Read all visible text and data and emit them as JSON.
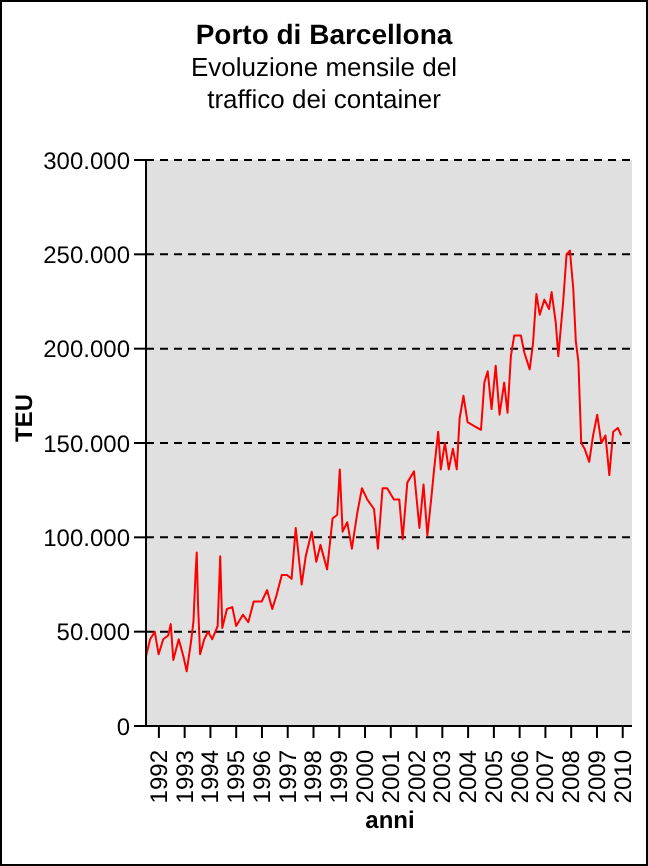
{
  "chart_data": {
    "type": "line",
    "title": "Porto di Barcellona",
    "subtitle": "Evoluzione mensile del traffico dei container",
    "xlabel": "anni",
    "ylabel": "TEU",
    "x": [
      1992.0,
      1992.16,
      1992.34,
      1992.49,
      1992.67,
      1992.86,
      1992.96,
      1993.06,
      1993.27,
      1993.45,
      1993.58,
      1993.74,
      1993.84,
      1993.92,
      1993.97,
      1994.02,
      1994.1,
      1994.26,
      1994.41,
      1994.57,
      1994.78,
      1994.88,
      1994.96,
      1995.14,
      1995.35,
      1995.5,
      1995.76,
      1995.97,
      1996.18,
      1996.49,
      1996.7,
      1996.9,
      1997.06,
      1997.27,
      1997.47,
      1997.65,
      1997.81,
      1998.04,
      1998.2,
      1998.43,
      1998.61,
      1998.77,
      1999.03,
      1999.24,
      1999.42,
      1999.52,
      1999.63,
      1999.81,
      1999.99,
      2000.2,
      2000.38,
      2000.59,
      2000.85,
      2001.0,
      2001.18,
      2001.36,
      2001.62,
      2001.83,
      2001.96,
      2002.14,
      2002.4,
      2002.61,
      2002.77,
      2002.92,
      2003.08,
      2003.18,
      2003.34,
      2003.44,
      2003.6,
      2003.75,
      2003.91,
      2004.06,
      2004.17,
      2004.32,
      2004.48,
      2004.74,
      2005.0,
      2005.13,
      2005.26,
      2005.41,
      2005.57,
      2005.72,
      2005.9,
      2006.03,
      2006.16,
      2006.29,
      2006.55,
      2006.68,
      2006.89,
      2007.02,
      2007.15,
      2007.28,
      2007.46,
      2007.64,
      2007.74,
      2007.9,
      2008.0,
      2008.19,
      2008.32,
      2008.45,
      2008.58,
      2008.68,
      2008.78,
      2008.89,
      2009.02,
      2009.2,
      2009.35,
      2009.51,
      2009.67,
      2009.83,
      2009.98,
      2010.13,
      2010.31,
      2010.44
    ],
    "series": [
      {
        "color": "#ff0000",
        "values": [
          37000,
          46000,
          50000,
          38000,
          46000,
          48000,
          54000,
          35000,
          46000,
          37000,
          29000,
          44000,
          55000,
          80000,
          92000,
          64000,
          38000,
          46000,
          50000,
          46000,
          53000,
          90000,
          52000,
          62000,
          63000,
          53000,
          59000,
          55000,
          66000,
          66000,
          72000,
          62000,
          69000,
          80000,
          80000,
          78000,
          105000,
          75000,
          90000,
          103000,
          87000,
          96000,
          83000,
          110000,
          112000,
          136000,
          103000,
          108000,
          94000,
          113000,
          126000,
          120000,
          115000,
          94000,
          126000,
          126000,
          120000,
          120000,
          99000,
          129000,
          135000,
          105000,
          128000,
          101000,
          122000,
          136000,
          156000,
          136000,
          150000,
          136000,
          147000,
          136000,
          163000,
          175000,
          161000,
          159000,
          157000,
          182000,
          188000,
          168000,
          191000,
          165000,
          182000,
          166000,
          196000,
          207000,
          207000,
          198000,
          189000,
          203000,
          229000,
          218000,
          226000,
          221000,
          230000,
          214000,
          196000,
          225000,
          250000,
          252000,
          232000,
          204000,
          193000,
          150000,
          147000,
          140000,
          154000,
          165000,
          150000,
          154000,
          133000,
          156000,
          158000,
          154000
        ]
      }
    ],
    "xlim": [
      1992,
      2010.86
    ],
    "xticks": [
      {
        "value": 1992.5,
        "label": "1992"
      },
      {
        "value": 1993.5,
        "label": "1993"
      },
      {
        "value": 1994.5,
        "label": "1994"
      },
      {
        "value": 1995.5,
        "label": "1995"
      },
      {
        "value": 1996.5,
        "label": "1996"
      },
      {
        "value": 1997.5,
        "label": "1997"
      },
      {
        "value": 1998.5,
        "label": "1998"
      },
      {
        "value": 1999.5,
        "label": "1999"
      },
      {
        "value": 2000.5,
        "label": "2000"
      },
      {
        "value": 2001.5,
        "label": "2001"
      },
      {
        "value": 2002.5,
        "label": "2002"
      },
      {
        "value": 2003.5,
        "label": "2003"
      },
      {
        "value": 2004.5,
        "label": "2004"
      },
      {
        "value": 2005.5,
        "label": "2005"
      },
      {
        "value": 2006.5,
        "label": "2006"
      },
      {
        "value": 2007.5,
        "label": "2007"
      },
      {
        "value": 2008.5,
        "label": "2008"
      },
      {
        "value": 2009.5,
        "label": "2009"
      },
      {
        "value": 2010.5,
        "label": "2010"
      }
    ],
    "ylim": [
      0,
      300000
    ],
    "yticks": [
      0,
      {
        "value": 50000,
        "label": "50.000"
      },
      {
        "value": 100000,
        "label": "100.000"
      },
      {
        "value": 150000,
        "label": "150.000"
      },
      {
        "value": 200000,
        "label": "200.000"
      },
      {
        "value": 250000,
        "label": "250.000"
      },
      {
        "value": 300000,
        "label": "300.000"
      }
    ],
    "grid": "y",
    "legend": false,
    "marker": "none",
    "line_style": "solid"
  }
}
